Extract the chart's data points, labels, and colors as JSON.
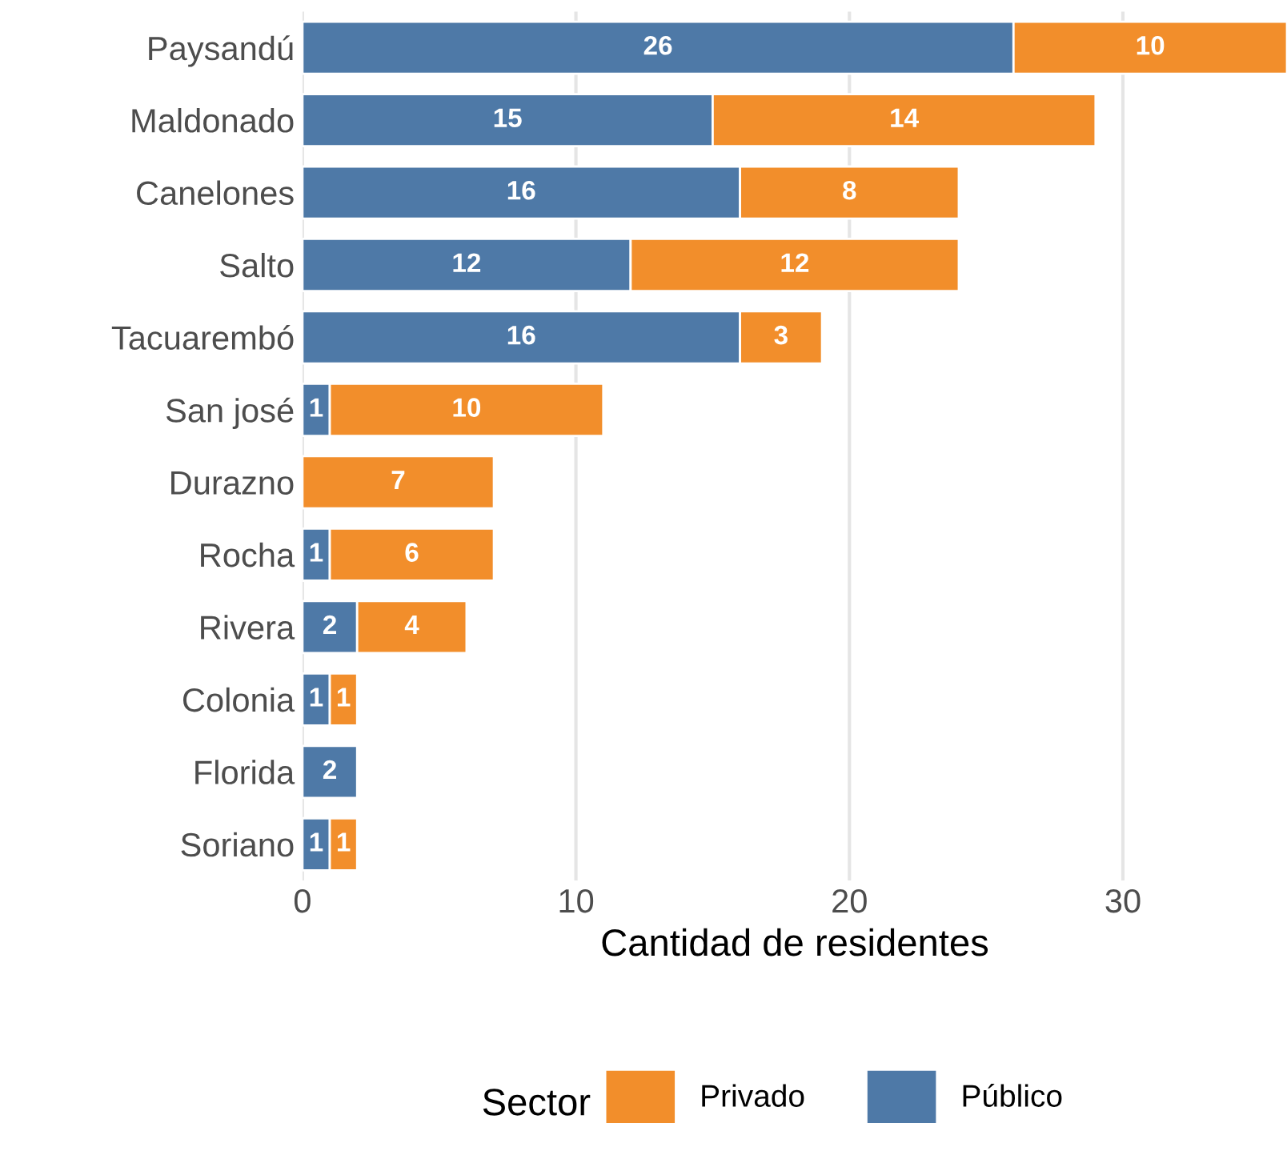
{
  "chart_data": {
    "type": "bar",
    "orientation": "horizontal",
    "stacked": true,
    "xlabel": "Cantidad de residentes",
    "legend_title": "Sector",
    "legend": "bottom",
    "categories": [
      "Paysandú",
      "Maldonado",
      "Canelones",
      "Salto",
      "Tacuarembó",
      "San josé",
      "Durazno",
      "Rocha",
      "Rivera",
      "Colonia",
      "Florida",
      "Soriano"
    ],
    "series": [
      {
        "name": "Público",
        "color": "#4e79a7",
        "values": [
          26,
          15,
          16,
          12,
          16,
          1,
          null,
          1,
          2,
          1,
          2,
          1
        ]
      },
      {
        "name": "Privado",
        "color": "#f28e2b",
        "values": [
          10,
          14,
          8,
          12,
          3,
          10,
          7,
          6,
          4,
          1,
          null,
          1
        ]
      }
    ],
    "xlim": [
      0,
      36
    ],
    "xticks": [
      0,
      10,
      20,
      30
    ],
    "grid": "x",
    "data_labels": true
  }
}
